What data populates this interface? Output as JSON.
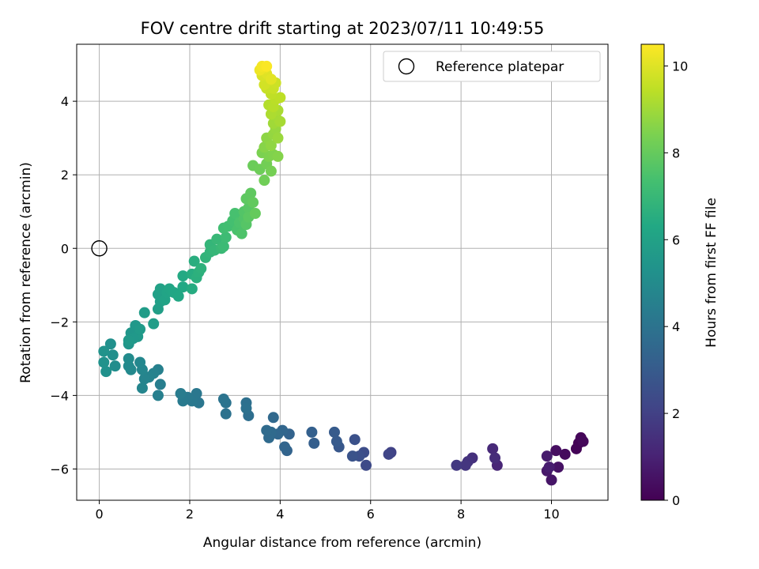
{
  "chart_data": {
    "type": "scatter",
    "title": "FOV centre drift starting at 2023/07/11 10:49:55",
    "xlabel": "Angular distance from reference (arcmin)",
    "ylabel": "Rotation from reference (arcmin)",
    "xlim": [
      -0.5,
      11.25
    ],
    "ylim": [
      -6.85,
      5.55
    ],
    "xticks": [
      0,
      2,
      4,
      6,
      8,
      10
    ],
    "yticks": [
      -6,
      -4,
      -2,
      0,
      2,
      4
    ],
    "grid": true,
    "legend": {
      "placement": "top-right",
      "entries": [
        "Reference platepar"
      ]
    },
    "reference_point": {
      "x": 0,
      "y": 0,
      "marker": "open-circle"
    },
    "colorbar": {
      "label": "Hours from first FF file",
      "range": [
        0,
        10.5
      ],
      "ticks": [
        0,
        2,
        4,
        6,
        8,
        10
      ],
      "colormap": "viridis"
    },
    "points_x_y_hours": [
      [
        10.65,
        -5.2,
        0.0
      ],
      [
        10.6,
        -5.3,
        0.05
      ],
      [
        10.55,
        -5.45,
        0.1
      ],
      [
        10.65,
        -5.15,
        0.15
      ],
      [
        10.7,
        -5.25,
        0.2
      ],
      [
        10.3,
        -5.6,
        0.3
      ],
      [
        10.1,
        -5.5,
        0.4
      ],
      [
        10.15,
        -5.95,
        0.5
      ],
      [
        10.0,
        -6.3,
        0.6
      ],
      [
        9.9,
        -6.05,
        0.7
      ],
      [
        9.9,
        -5.65,
        0.8
      ],
      [
        9.95,
        -5.95,
        0.85
      ],
      [
        8.8,
        -5.9,
        1.1
      ],
      [
        8.7,
        -5.45,
        1.2
      ],
      [
        8.75,
        -5.7,
        1.3
      ],
      [
        8.25,
        -5.7,
        1.45
      ],
      [
        8.15,
        -5.8,
        1.55
      ],
      [
        8.1,
        -5.9,
        1.65
      ],
      [
        7.9,
        -5.9,
        1.75
      ],
      [
        6.45,
        -5.55,
        2.05
      ],
      [
        6.4,
        -5.6,
        2.15
      ],
      [
        5.9,
        -5.9,
        2.35
      ],
      [
        5.85,
        -5.55,
        2.45
      ],
      [
        5.75,
        -5.65,
        2.55
      ],
      [
        5.65,
        -5.2,
        2.6
      ],
      [
        5.6,
        -5.65,
        2.7
      ],
      [
        5.3,
        -5.4,
        2.85
      ],
      [
        5.25,
        -5.25,
        2.95
      ],
      [
        5.2,
        -5.0,
        3.0
      ],
      [
        4.75,
        -5.3,
        3.15
      ],
      [
        4.7,
        -5.0,
        3.2
      ],
      [
        4.2,
        -5.05,
        3.3
      ],
      [
        4.15,
        -5.5,
        3.35
      ],
      [
        4.1,
        -5.4,
        3.4
      ],
      [
        4.05,
        -4.95,
        3.45
      ],
      [
        3.95,
        -5.05,
        3.5
      ],
      [
        3.85,
        -4.6,
        3.55
      ],
      [
        3.8,
        -5.0,
        3.6
      ],
      [
        3.75,
        -5.15,
        3.6
      ],
      [
        3.7,
        -4.95,
        3.65
      ],
      [
        3.3,
        -4.55,
        3.8
      ],
      [
        3.25,
        -4.2,
        3.85
      ],
      [
        3.25,
        -4.35,
        3.9
      ],
      [
        2.8,
        -4.5,
        3.95
      ],
      [
        2.8,
        -4.2,
        4.0
      ],
      [
        2.75,
        -4.1,
        4.05
      ],
      [
        2.2,
        -4.2,
        4.1
      ],
      [
        2.15,
        -3.95,
        4.15
      ],
      [
        2.05,
        -4.15,
        4.2
      ],
      [
        1.95,
        -4.05,
        4.25
      ],
      [
        1.85,
        -4.15,
        4.3
      ],
      [
        1.8,
        -3.95,
        4.35
      ],
      [
        1.35,
        -3.7,
        4.45
      ],
      [
        1.3,
        -4.0,
        4.5
      ],
      [
        1.3,
        -3.3,
        4.55
      ],
      [
        1.2,
        -3.4,
        4.6
      ],
      [
        1.1,
        -3.5,
        4.65
      ],
      [
        1.0,
        -3.55,
        4.7
      ],
      [
        0.95,
        -3.8,
        4.75
      ],
      [
        0.95,
        -3.3,
        4.8
      ],
      [
        0.9,
        -3.1,
        4.85
      ],
      [
        0.7,
        -3.3,
        4.9
      ],
      [
        0.65,
        -3.2,
        4.95
      ],
      [
        0.65,
        -3.0,
        5.0
      ],
      [
        0.35,
        -3.2,
        5.1
      ],
      [
        0.3,
        -2.9,
        5.15
      ],
      [
        0.25,
        -2.6,
        5.2
      ],
      [
        0.15,
        -3.35,
        5.25
      ],
      [
        0.1,
        -3.1,
        5.3
      ],
      [
        0.1,
        -2.8,
        5.35
      ],
      [
        0.65,
        -2.6,
        5.45
      ],
      [
        0.7,
        -2.3,
        5.5
      ],
      [
        0.8,
        -2.1,
        5.55
      ],
      [
        0.85,
        -2.4,
        5.6
      ],
      [
        0.9,
        -2.2,
        5.65
      ],
      [
        0.75,
        -2.45,
        5.55
      ],
      [
        0.65,
        -2.5,
        5.6
      ],
      [
        1.0,
        -1.75,
        5.75
      ],
      [
        1.2,
        -2.05,
        5.8
      ],
      [
        1.3,
        -1.65,
        5.85
      ],
      [
        1.35,
        -1.45,
        5.9
      ],
      [
        1.3,
        -1.25,
        5.95
      ],
      [
        1.35,
        -1.1,
        6.0
      ],
      [
        1.45,
        -1.4,
        6.05
      ],
      [
        1.5,
        -1.2,
        6.1
      ],
      [
        1.55,
        -1.1,
        6.15
      ],
      [
        1.65,
        -1.2,
        6.2
      ],
      [
        1.75,
        -1.3,
        6.25
      ],
      [
        1.85,
        -1.05,
        6.3
      ],
      [
        1.85,
        -0.75,
        6.35
      ],
      [
        2.05,
        -1.1,
        6.45
      ],
      [
        2.05,
        -0.7,
        6.5
      ],
      [
        2.1,
        -0.35,
        6.55
      ],
      [
        2.15,
        -0.8,
        6.6
      ],
      [
        2.2,
        -0.65,
        6.65
      ],
      [
        2.25,
        -0.55,
        6.7
      ],
      [
        2.35,
        -0.25,
        6.8
      ],
      [
        2.45,
        -0.1,
        6.85
      ],
      [
        2.45,
        0.1,
        6.9
      ],
      [
        2.55,
        -0.05,
        6.95
      ],
      [
        2.6,
        0.25,
        7.0
      ],
      [
        2.7,
        0.0,
        7.05
      ],
      [
        2.75,
        0.05,
        7.1
      ],
      [
        2.8,
        0.3,
        7.15
      ],
      [
        2.75,
        0.55,
        7.25
      ],
      [
        2.85,
        0.6,
        7.3
      ],
      [
        2.95,
        0.75,
        7.35
      ],
      [
        3.0,
        0.95,
        7.4
      ],
      [
        3.05,
        0.5,
        7.45
      ],
      [
        3.1,
        0.7,
        7.5
      ],
      [
        3.15,
        0.4,
        7.55
      ],
      [
        3.2,
        0.8,
        7.6
      ],
      [
        3.2,
        1.0,
        7.65
      ],
      [
        3.25,
        0.65,
        7.7
      ],
      [
        3.3,
        1.1,
        7.75
      ],
      [
        3.3,
        0.85,
        7.8
      ],
      [
        3.25,
        1.35,
        7.85
      ],
      [
        3.35,
        1.5,
        7.9
      ],
      [
        3.4,
        1.25,
        7.95
      ],
      [
        3.45,
        0.95,
        8.0
      ],
      [
        3.4,
        2.25,
        8.1
      ],
      [
        3.55,
        2.15,
        8.15
      ],
      [
        3.65,
        1.85,
        8.2
      ],
      [
        3.7,
        2.3,
        8.25
      ],
      [
        3.8,
        2.1,
        8.3
      ],
      [
        3.6,
        2.6,
        8.4
      ],
      [
        3.75,
        2.5,
        8.45
      ],
      [
        3.85,
        2.55,
        8.5
      ],
      [
        3.95,
        2.5,
        8.55
      ],
      [
        3.65,
        2.75,
        8.6
      ],
      [
        3.7,
        3.0,
        8.7
      ],
      [
        3.8,
        2.8,
        8.75
      ],
      [
        3.85,
        3.1,
        8.8
      ],
      [
        3.9,
        3.25,
        8.85
      ],
      [
        3.95,
        3.0,
        8.9
      ],
      [
        3.85,
        3.4,
        9.0
      ],
      [
        3.9,
        3.6,
        9.05
      ],
      [
        4.0,
        3.45,
        9.1
      ],
      [
        3.95,
        3.75,
        9.15
      ],
      [
        3.8,
        3.65,
        9.2
      ],
      [
        3.75,
        3.9,
        9.3
      ],
      [
        3.85,
        3.85,
        9.35
      ],
      [
        3.9,
        4.05,
        9.4
      ],
      [
        4.0,
        4.1,
        9.45
      ],
      [
        3.8,
        4.2,
        9.5
      ],
      [
        3.7,
        4.35,
        9.6
      ],
      [
        3.85,
        4.35,
        9.65
      ],
      [
        3.9,
        4.5,
        9.7
      ],
      [
        3.75,
        4.55,
        9.75
      ],
      [
        3.65,
        4.45,
        9.8
      ],
      [
        3.6,
        4.7,
        9.9
      ],
      [
        3.7,
        4.75,
        10.0
      ],
      [
        3.8,
        4.6,
        10.05
      ],
      [
        3.65,
        4.9,
        10.15
      ],
      [
        3.55,
        4.85,
        10.25
      ],
      [
        3.6,
        4.95,
        10.35
      ],
      [
        3.7,
        4.95,
        10.45
      ]
    ]
  }
}
